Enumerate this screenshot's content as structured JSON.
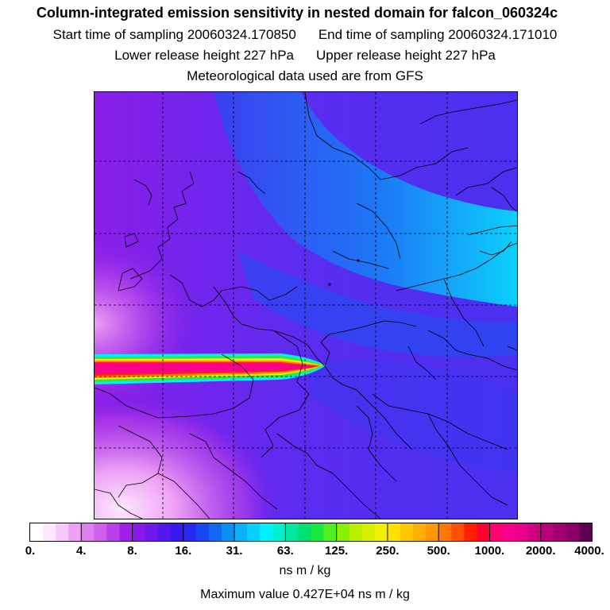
{
  "title": {
    "line1": "Column-integrated emission sensitivity in nested domain for falcon_060324c",
    "start_label": "Start time of sampling 20060324.170850",
    "end_label": "End time of sampling 20060324.171010",
    "lower_label": "Lower release height  227 hPa",
    "upper_label": "Upper release height  227 hPa",
    "met_label": "Meteorological data used are from GFS"
  },
  "colorbar": {
    "labels": [
      "0.",
      "4.",
      "8.",
      "16.",
      "31.",
      "63.",
      "125.",
      "250.",
      "500.",
      "1000.",
      "2000.",
      "4000."
    ],
    "colors": [
      "#ffffff",
      "#fde8ff",
      "#f8c8fb",
      "#eea0f5",
      "#e07ff0",
      "#d060ec",
      "#b940e8",
      "#a020e6",
      "#8818e6",
      "#7018ea",
      "#5418ee",
      "#3a18f0",
      "#2828f2",
      "#1848f4",
      "#1068f6",
      "#0890f8",
      "#08b0fa",
      "#08d0fc",
      "#00f0ff",
      "#00f0d0",
      "#00e8a0",
      "#00e070",
      "#18e840",
      "#50f020",
      "#88f000",
      "#b8f000",
      "#d8f000",
      "#f0f000",
      "#ffe000",
      "#ffc800",
      "#ffb000",
      "#ff9800",
      "#ff7800",
      "#ff5000",
      "#ff2000",
      "#ff0030",
      "#ff0070",
      "#f8008c",
      "#e8008c",
      "#d00080",
      "#b80078",
      "#a00070",
      "#880068",
      "#600050"
    ],
    "units": "ns m / kg"
  },
  "max_value": "Maximum value  0.427E+04 ns m / kg"
}
